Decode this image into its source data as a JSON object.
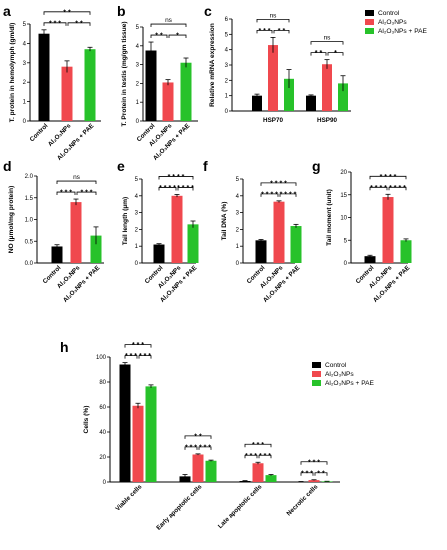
{
  "colors": {
    "control": "#000000",
    "al2o3nps": "#f0484e",
    "al2o3nps_pae": "#27c22a"
  },
  "chart_data": [
    {
      "id": "a",
      "type": "bar",
      "panel_label": "a",
      "ylabel": "T. protein in hemolymph (gm/dl)",
      "ylim": [
        0,
        5
      ],
      "yticks": [
        0,
        1,
        2,
        3,
        4,
        5
      ],
      "categories": [
        "Control",
        "Al₂O₃NPs",
        "Al₂O₃NPs + PAE"
      ],
      "values": [
        4.5,
        2.8,
        3.7
      ],
      "errors": [
        0.2,
        0.3,
        0.1
      ],
      "significance": [
        {
          "from": 0,
          "to": 2,
          "label": "* *"
        },
        {
          "from": 0,
          "to": 1,
          "label": "* * *"
        },
        {
          "from": 1,
          "to": 2,
          "label": "* *"
        }
      ]
    },
    {
      "id": "b",
      "type": "bar",
      "panel_label": "b",
      "ylabel": "T. Protein in testis (mg/gm tissue)",
      "ylim": [
        0,
        5
      ],
      "yticks": [
        0,
        1,
        2,
        3,
        4,
        5
      ],
      "categories": [
        "Control",
        "Al₂O₃NPs",
        "Al₂O₃NPs + PAE"
      ],
      "values": [
        3.75,
        2.05,
        3.1
      ],
      "errors": [
        0.45,
        0.15,
        0.25
      ],
      "significance": [
        {
          "from": 0,
          "to": 2,
          "label": "ns"
        },
        {
          "from": 0,
          "to": 1,
          "label": "* *"
        },
        {
          "from": 1,
          "to": 2,
          "label": "*"
        }
      ]
    },
    {
      "id": "c",
      "type": "bar",
      "panel_label": "c",
      "ylabel": "Relative mRNA expression",
      "ylim": [
        0,
        6
      ],
      "yticks": [
        0,
        1,
        2,
        3,
        4,
        5,
        6
      ],
      "categories": [
        "HSP70",
        "HSP90"
      ],
      "series": [
        {
          "name": "Control",
          "values": [
            1.0,
            1.0
          ],
          "errors": [
            0.1,
            0.05
          ]
        },
        {
          "name": "Al₂O₃NPs",
          "values": [
            4.3,
            3.05
          ],
          "errors": [
            0.5,
            0.3
          ]
        },
        {
          "name": "Al₂O₃NPs + PAE",
          "values": [
            2.1,
            1.8
          ],
          "errors": [
            0.6,
            0.5
          ]
        }
      ],
      "significance": [
        {
          "group": 0,
          "from": 0,
          "to": 2,
          "label": "ns"
        },
        {
          "group": 0,
          "from": 0,
          "to": 1,
          "label": "* * *"
        },
        {
          "group": 0,
          "from": 1,
          "to": 2,
          "label": "* *"
        },
        {
          "group": 1,
          "from": 0,
          "to": 2,
          "label": "ns"
        },
        {
          "group": 1,
          "from": 0,
          "to": 1,
          "label": "* *"
        },
        {
          "group": 1,
          "from": 1,
          "to": 2,
          "label": "*"
        }
      ],
      "legend": [
        "Control",
        "Al₂O₃NPs",
        "Al₂O₃NPs + PAE"
      ]
    },
    {
      "id": "d",
      "type": "bar",
      "panel_label": "d",
      "ylabel": "NO (µmol/mg protein)",
      "ylim": [
        0,
        2.0
      ],
      "yticks": [
        "0.0",
        "0.5",
        "1.0",
        "1.5",
        "2.0"
      ],
      "categories": [
        "Control",
        "Al₂O₃NPs",
        "Al₂O₃NPs + PAE"
      ],
      "values": [
        0.38,
        1.4,
        0.63
      ],
      "errors": [
        0.04,
        0.07,
        0.2
      ],
      "significance": [
        {
          "from": 0,
          "to": 2,
          "label": "ns"
        },
        {
          "from": 0,
          "to": 1,
          "label": "* * *"
        },
        {
          "from": 1,
          "to": 2,
          "label": "* * *"
        }
      ]
    },
    {
      "id": "e",
      "type": "bar",
      "panel_label": "e",
      "ylabel": "Tail length (µm)",
      "ylim": [
        0,
        5
      ],
      "yticks": [
        0,
        1,
        2,
        3,
        4,
        5
      ],
      "categories": [
        "Control",
        "Al₂O₃NPs",
        "Al₂O₃NPs + PAE"
      ],
      "values": [
        1.1,
        4.0,
        2.3
      ],
      "errors": [
        0.05,
        0.08,
        0.2
      ],
      "significance": [
        {
          "from": 0,
          "to": 2,
          "label": "* * * *"
        },
        {
          "from": 0,
          "to": 1,
          "label": "* * * *"
        },
        {
          "from": 1,
          "to": 2,
          "label": "* * * *"
        }
      ]
    },
    {
      "id": "f",
      "type": "bar",
      "panel_label": "f",
      "ylabel": "Tail DNA (%)",
      "ylim": [
        0,
        5
      ],
      "yticks": [
        0,
        1,
        2,
        3,
        4,
        5
      ],
      "categories": [
        "Control",
        "Al₂O₃NPs",
        "Al₂O₃NPs + PAE"
      ],
      "values": [
        1.35,
        3.65,
        2.2
      ],
      "errors": [
        0.05,
        0.05,
        0.1
      ],
      "significance": [
        {
          "from": 0,
          "to": 2,
          "label": "* * * *"
        },
        {
          "from": 0,
          "to": 1,
          "label": "* * * *"
        },
        {
          "from": 1,
          "to": 2,
          "label": "* * * *"
        }
      ]
    },
    {
      "id": "g",
      "type": "bar",
      "panel_label": "g",
      "ylabel": "Tail moment (unit)",
      "ylim": [
        0,
        20
      ],
      "yticks": [
        0,
        5,
        10,
        15,
        20
      ],
      "categories": [
        "Control",
        "Al₂O₃NPs",
        "Al₂O₃NPs + PAE"
      ],
      "values": [
        1.5,
        14.5,
        5.0
      ],
      "errors": [
        0.2,
        0.6,
        0.3
      ],
      "significance": [
        {
          "from": 0,
          "to": 2,
          "label": "* * * *"
        },
        {
          "from": 0,
          "to": 1,
          "label": "* * * *"
        },
        {
          "from": 1,
          "to": 2,
          "label": "* * * *"
        }
      ]
    },
    {
      "id": "h",
      "type": "bar",
      "panel_label": "h",
      "ylabel": "Cells (%)",
      "ylim": [
        0,
        100
      ],
      "yticks": [
        0,
        20,
        40,
        60,
        80,
        100
      ],
      "categories": [
        "Viable cells",
        "Early apoptotic cells",
        "Late apoptotic cells",
        "Necrotic cells"
      ],
      "series": [
        {
          "name": "Control",
          "values": [
            94,
            4.5,
            0.8,
            0.3
          ],
          "errors": [
            1.5,
            1.5,
            0.3,
            0.1
          ]
        },
        {
          "name": "Al₂O₃NPs",
          "values": [
            61,
            22,
            15,
            1.5
          ],
          "errors": [
            2,
            0.5,
            0.8,
            0.3
          ]
        },
        {
          "name": "Al₂O₃NPs + PAE",
          "values": [
            76.5,
            17,
            5.5,
            0.5
          ],
          "errors": [
            1.2,
            0.5,
            0.5,
            0.1
          ]
        }
      ],
      "significance": [
        {
          "group": 0,
          "from": 0,
          "to": 2,
          "label": "* * *"
        },
        {
          "group": 0,
          "from": 0,
          "to": 1,
          "label": "* * *"
        },
        {
          "group": 0,
          "from": 1,
          "to": 2,
          "label": "* * *"
        },
        {
          "group": 1,
          "from": 0,
          "to": 2,
          "label": "* *"
        },
        {
          "group": 1,
          "from": 0,
          "to": 1,
          "label": "* * *"
        },
        {
          "group": 1,
          "from": 1,
          "to": 2,
          "label": "* * *"
        },
        {
          "group": 2,
          "from": 0,
          "to": 2,
          "label": "* * *"
        },
        {
          "group": 2,
          "from": 0,
          "to": 1,
          "label": "* * *"
        },
        {
          "group": 2,
          "from": 1,
          "to": 2,
          "label": "* * *"
        },
        {
          "group": 3,
          "from": 0,
          "to": 2,
          "label": "* * *"
        },
        {
          "group": 3,
          "from": 0,
          "to": 1,
          "label": "* * *"
        },
        {
          "group": 3,
          "from": 1,
          "to": 2,
          "label": "* *"
        }
      ],
      "legend": [
        "Control",
        "Al₂O₃NPs",
        "Al₂O₃NPs + PAE"
      ]
    }
  ]
}
